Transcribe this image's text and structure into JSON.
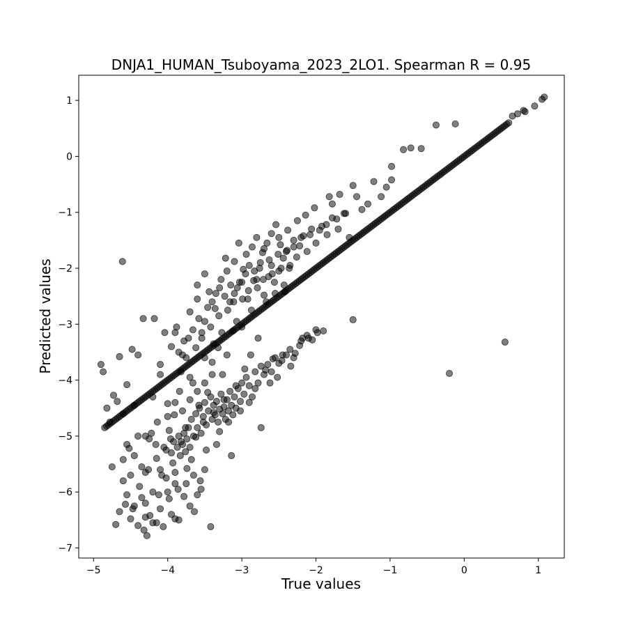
{
  "chart_data": {
    "type": "scatter",
    "title": "DNJA1_HUMAN_Tsuboyama_2023_2LO1. Spearman R = 0.95",
    "xlabel": "True values",
    "ylabel": "Predicted values",
    "xlim": [
      -5.2,
      1.35
    ],
    "ylim": [
      -7.18,
      1.45
    ],
    "xticks": [
      -5,
      -4,
      -3,
      -2,
      -1,
      0,
      1
    ],
    "yticks": [
      -7,
      -6,
      -5,
      -4,
      -3,
      -2,
      -1,
      0,
      1
    ],
    "xtick_labels": [
      "−5",
      "−4",
      "−3",
      "−2",
      "−1",
      "0",
      "1"
    ],
    "ytick_labels": [
      "−7",
      "−6",
      "−5",
      "−4",
      "−3",
      "−2",
      "−1",
      "0",
      "1"
    ],
    "grid": false,
    "marker_color": "#000000",
    "marker_alpha": 0.5,
    "diagonal_range": [
      -4.85,
      0.6
    ],
    "diagonal_step": 0.025,
    "points": [
      [
        -4.9,
        -3.72
      ],
      [
        -4.87,
        -3.85
      ],
      [
        -4.82,
        -4.5
      ],
      [
        -4.78,
        -4.75
      ],
      [
        -4.75,
        -5.55
      ],
      [
        -4.73,
        -4.27
      ],
      [
        -4.7,
        -6.58
      ],
      [
        -4.68,
        -4.38
      ],
      [
        -4.65,
        -3.58
      ],
      [
        -4.6,
        -5.42
      ],
      [
        -4.61,
        -1.88
      ],
      [
        -4.57,
        -6.22
      ],
      [
        -4.55,
        -4.08
      ],
      [
        -4.52,
        -5.22
      ],
      [
        -4.5,
        -6.48
      ],
      [
        -4.48,
        -3.45
      ],
      [
        -4.47,
        -6.3
      ],
      [
        -4.45,
        -5.35
      ],
      [
        -4.4,
        -3.55
      ],
      [
        -4.38,
        -5.9
      ],
      [
        -4.35,
        -6.1
      ],
      [
        -4.33,
        -2.9
      ],
      [
        -4.32,
        -6.68
      ],
      [
        -4.3,
        -5.0
      ],
      [
        -4.28,
        -6.78
      ],
      [
        -4.26,
        -5.6
      ],
      [
        -4.24,
        -6.42
      ],
      [
        -4.22,
        -4.95
      ],
      [
        -4.2,
        -6.55
      ],
      [
        -4.18,
        -2.9
      ],
      [
        -4.16,
        -5.15
      ],
      [
        -4.14,
        -4.75
      ],
      [
        -4.12,
        -6.05
      ],
      [
        -4.1,
        -3.72
      ],
      [
        -4.08,
        -5.7
      ],
      [
        -4.06,
        -6.62
      ],
      [
        -4.04,
        -3.15
      ],
      [
        -4.02,
        -5.25
      ],
      [
        -4.0,
        -4.42
      ],
      [
        -3.98,
        -6.12
      ],
      [
        -3.96,
        -5.05
      ],
      [
        -3.95,
        -3.4
      ],
      [
        -3.93,
        -5.48
      ],
      [
        -3.91,
        -4.62
      ],
      [
        -3.9,
        -6.48
      ],
      [
        -3.88,
        -3.05
      ],
      [
        -3.86,
        -5.95
      ],
      [
        -3.84,
        -4.2
      ],
      [
        -3.82,
        -5.1
      ],
      [
        -3.8,
        -3.55
      ],
      [
        -3.78,
        -6.08
      ],
      [
        -3.76,
        -4.85
      ],
      [
        -3.74,
        -5.58
      ],
      [
        -3.72,
        -3.25
      ],
      [
        -3.7,
        -2.78
      ],
      [
        -3.68,
        -5.42
      ],
      [
        -3.66,
        -4.05
      ],
      [
        -3.64,
        -6.35
      ],
      [
        -3.62,
        -5.02
      ],
      [
        -3.6,
        -2.55
      ],
      [
        -3.58,
        -4.45
      ],
      [
        -3.56,
        -5.8
      ],
      [
        -3.54,
        -3.15
      ],
      [
        -3.52,
        -4.75
      ],
      [
        -3.5,
        -2.95
      ],
      [
        -3.48,
        -5.25
      ],
      [
        -3.46,
        -4.22
      ],
      [
        -3.44,
        -2.42
      ],
      [
        -3.42,
        -6.62
      ],
      [
        -3.4,
        -3.68
      ],
      [
        -3.38,
        -4.58
      ],
      [
        -3.36,
        -2.72
      ],
      [
        -3.34,
        -5.15
      ],
      [
        -3.32,
        -3.42
      ],
      [
        -3.3,
        -4.92
      ],
      [
        -3.28,
        -2.2
      ],
      [
        -3.26,
        -3.9
      ],
      [
        -3.24,
        -4.35
      ],
      [
        -3.22,
        -1.82
      ],
      [
        -3.2,
        -3.55
      ],
      [
        -3.18,
        -4.75
      ],
      [
        -3.16,
        -2.6
      ],
      [
        -3.14,
        -5.35
      ],
      [
        -3.12,
        -3.12
      ],
      [
        -3.1,
        -1.88
      ],
      [
        -3.08,
        -4.1
      ],
      [
        -3.06,
        -2.35
      ],
      [
        -3.04,
        -1.55
      ],
      [
        -3.02,
        -4.55
      ],
      [
        -3.0,
        -3.05
      ],
      [
        -2.98,
        -2.02
      ],
      [
        -2.96,
        -3.8
      ],
      [
        -2.94,
        -1.75
      ],
      [
        -2.92,
        -2.55
      ],
      [
        -2.9,
        -4.4
      ],
      [
        -2.88,
        -3.55
      ],
      [
        -2.86,
        -1.62
      ],
      [
        -2.84,
        -2.22
      ],
      [
        -2.82,
        -4.15
      ],
      [
        -2.8,
        -1.45
      ],
      [
        -2.78,
        -3.25
      ],
      [
        -2.76,
        -2.0
      ],
      [
        -2.74,
        -4.85
      ],
      [
        -2.72,
        -1.72
      ],
      [
        -2.7,
        -2.48
      ],
      [
        -2.68,
        -3.82
      ],
      [
        -2.66,
        -1.55
      ],
      [
        -2.64,
        -2.15
      ],
      [
        -2.62,
        -4.05
      ],
      [
        -2.6,
        -1.38
      ],
      [
        -2.58,
        -3.62
      ],
      [
        -2.56,
        -2.25
      ],
      [
        -2.54,
        -1.22
      ],
      [
        -2.52,
        -3.95
      ],
      [
        -2.5,
        -2.05
      ],
      [
        -2.48,
        -1.58
      ],
      [
        -2.46,
        -3.65
      ],
      [
        -2.44,
        -1.82
      ],
      [
        -2.42,
        -2.42
      ],
      [
        -2.4,
        -3.55
      ],
      [
        -2.38,
        -1.32
      ],
      [
        -2.36,
        -2.0
      ],
      [
        -2.34,
        -3.75
      ],
      [
        -2.3,
        -1.62
      ],
      [
        -2.28,
        -3.52
      ],
      [
        -2.25,
        -1.15
      ],
      [
        -2.22,
        -3.38
      ],
      [
        -2.2,
        -1.45
      ],
      [
        -2.18,
        -3.25
      ],
      [
        -2.14,
        -1.05
      ],
      [
        -2.12,
        -3.2
      ],
      [
        -2.08,
        -1.4
      ],
      [
        -2.05,
        -3.28
      ],
      [
        -2.02,
        -0.92
      ],
      [
        -1.98,
        -3.15
      ],
      [
        -1.95,
        -1.32
      ],
      [
        -1.9,
        -3.12
      ],
      [
        -1.86,
        -1.22
      ],
      [
        -1.82,
        -0.72
      ],
      [
        -1.78,
        -0.85
      ],
      [
        -1.72,
        -1.12
      ],
      [
        -1.68,
        -0.68
      ],
      [
        -1.62,
        -1.02
      ],
      [
        -1.55,
        -1.45
      ],
      [
        -1.5,
        -0.52
      ],
      [
        -1.5,
        -2.92
      ],
      [
        -1.45,
        -0.72
      ],
      [
        -1.38,
        -0.95
      ],
      [
        -1.3,
        -0.85
      ],
      [
        -1.22,
        -0.45
      ],
      [
        -1.12,
        -0.72
      ],
      [
        -1.05,
        -0.55
      ],
      [
        -0.98,
        -0.42
      ],
      [
        -0.98,
        -0.18
      ],
      [
        -0.82,
        0.12
      ],
      [
        -0.72,
        0.15
      ],
      [
        -0.58,
        0.14
      ],
      [
        -0.38,
        0.56
      ],
      [
        -0.12,
        0.58
      ],
      [
        -0.2,
        -3.88
      ],
      [
        0.55,
        -3.32
      ],
      [
        0.65,
        0.72
      ],
      [
        0.82,
        0.8
      ],
      [
        0.95,
        0.9
      ],
      [
        1.05,
        1.02
      ],
      [
        1.08,
        1.06
      ],
      [
        0.72,
        0.76
      ],
      [
        0.8,
        0.82
      ],
      [
        -4.6,
        -4.6
      ],
      [
        -4.55,
        -5.15
      ],
      [
        -4.4,
        -5.0
      ],
      [
        -4.35,
        -5.55
      ],
      [
        -4.3,
        -5.65
      ],
      [
        -4.25,
        -5.05
      ],
      [
        -4.15,
        -5.4
      ],
      [
        -4.1,
        -5.6
      ],
      [
        -4.05,
        -5.2
      ],
      [
        -4.02,
        -5.75
      ],
      [
        -3.98,
        -4.9
      ],
      [
        -3.95,
        -5.3
      ],
      [
        -3.92,
        -5.1
      ],
      [
        -3.9,
        -5.65
      ],
      [
        -3.87,
        -5.2
      ],
      [
        -3.85,
        -5.0
      ],
      [
        -3.83,
        -5.35
      ],
      [
        -3.8,
        -5.15
      ],
      [
        -3.78,
        -4.95
      ],
      [
        -3.76,
        -5.28
      ],
      [
        -3.74,
        -5.05
      ],
      [
        -3.72,
        -4.85
      ],
      [
        -3.7,
        -5.2
      ],
      [
        -3.68,
        -4.7
      ],
      [
        -3.65,
        -5.0
      ],
      [
        -3.62,
        -4.6
      ],
      [
        -3.6,
        -4.85
      ],
      [
        -3.57,
        -4.5
      ],
      [
        -3.55,
        -4.95
      ],
      [
        -3.52,
        -4.65
      ],
      [
        -3.5,
        -4.4
      ],
      [
        -3.48,
        -4.8
      ],
      [
        -3.45,
        -4.55
      ],
      [
        -3.42,
        -4.3
      ],
      [
        -3.4,
        -4.7
      ],
      [
        -3.38,
        -4.45
      ],
      [
        -3.36,
        -4.62
      ],
      [
        -3.34,
        -4.38
      ],
      [
        -3.32,
        -4.75
      ],
      [
        -3.3,
        -4.52
      ],
      [
        -3.28,
        -4.25
      ],
      [
        -3.26,
        -4.6
      ],
      [
        -3.24,
        -4.48
      ],
      [
        -3.22,
        -4.7
      ],
      [
        -3.2,
        -4.35
      ],
      [
        -3.18,
        -4.55
      ],
      [
        -3.16,
        -4.2
      ],
      [
        -3.14,
        -4.45
      ],
      [
        -3.12,
        -4.62
      ],
      [
        -3.1,
        -4.3
      ],
      [
        -3.08,
        -4.5
      ],
      [
        -3.05,
        -4.15
      ],
      [
        -3.02,
        -4.38
      ],
      [
        -3.0,
        -4.05
      ],
      [
        -2.97,
        -4.25
      ],
      [
        -2.94,
        -3.95
      ],
      [
        -2.9,
        -4.1
      ],
      [
        -2.86,
        -4.3
      ],
      [
        -2.82,
        -3.85
      ],
      [
        -2.78,
        -4.05
      ],
      [
        -2.74,
        -3.75
      ],
      [
        -2.7,
        -3.9
      ],
      [
        -2.65,
        -3.72
      ],
      [
        -2.6,
        -3.85
      ],
      [
        -2.55,
        -3.6
      ],
      [
        -2.5,
        -3.7
      ],
      [
        -2.45,
        -3.55
      ],
      [
        -2.35,
        -3.45
      ],
      [
        -2.3,
        -3.6
      ],
      [
        -2.2,
        -3.3
      ],
      [
        -2.1,
        -3.25
      ],
      [
        -2.0,
        -3.1
      ],
      [
        -3.9,
        -3.15
      ],
      [
        -3.85,
        -3.5
      ],
      [
        -3.82,
        -3.85
      ],
      [
        -3.78,
        -3.3
      ],
      [
        -3.75,
        -3.6
      ],
      [
        -3.7,
        -3.95
      ],
      [
        -3.66,
        -3.1
      ],
      [
        -3.62,
        -3.42
      ],
      [
        -3.58,
        -2.9
      ],
      [
        -3.54,
        -3.25
      ],
      [
        -3.5,
        -3.6
      ],
      [
        -3.46,
        -2.7
      ],
      [
        -3.42,
        -3.05
      ],
      [
        -3.38,
        -3.35
      ],
      [
        -3.35,
        -2.45
      ],
      [
        -3.31,
        -2.85
      ],
      [
        -3.27,
        -3.15
      ],
      [
        -3.23,
        -2.5
      ],
      [
        -3.19,
        -2.75
      ],
      [
        -3.15,
        -2.3
      ],
      [
        -3.11,
        -2.6
      ],
      [
        -3.07,
        -2.95
      ],
      [
        -3.03,
        -2.25
      ],
      [
        -2.99,
        -2.55
      ],
      [
        -2.95,
        -2.1
      ],
      [
        -2.91,
        -2.4
      ],
      [
        -2.87,
        -2.75
      ],
      [
        -2.83,
        -2.05
      ],
      [
        -2.79,
        -2.35
      ],
      [
        -2.75,
        -1.9
      ],
      [
        -2.71,
        -2.2
      ],
      [
        -2.67,
        -2.6
      ],
      [
        -2.63,
        -1.85
      ],
      [
        -2.59,
        -2.1
      ],
      [
        -2.55,
        -2.45
      ],
      [
        -2.51,
        -1.75
      ],
      [
        -2.47,
        -2.0
      ],
      [
        -2.43,
        -2.3
      ],
      [
        -2.39,
        -1.68
      ],
      [
        -2.35,
        -1.95
      ],
      [
        -2.3,
        -1.5
      ],
      [
        -2.26,
        -1.8
      ],
      [
        -2.22,
        -1.6
      ],
      [
        -2.17,
        -1.42
      ],
      [
        -2.12,
        -1.7
      ],
      [
        -2.06,
        -1.3
      ],
      [
        -2.0,
        -1.55
      ],
      [
        -1.92,
        -1.25
      ],
      [
        -1.85,
        -1.4
      ],
      [
        -1.78,
        -1.1
      ],
      [
        -1.7,
        -1.3
      ],
      [
        -1.6,
        -1.02
      ],
      [
        -3.6,
        -2.3
      ],
      [
        -3.5,
        -2.1
      ],
      [
        -3.4,
        -2.6
      ],
      [
        -3.3,
        -2.35
      ],
      [
        -3.2,
        -2.05
      ],
      [
        -3.1,
        -2.45
      ],
      [
        -3.0,
        -2.25
      ],
      [
        -2.9,
        -1.95
      ],
      [
        -2.8,
        -2.2
      ],
      [
        -2.7,
        -1.65
      ],
      [
        -2.6,
        -1.95
      ],
      [
        -2.5,
        -1.45
      ],
      [
        -2.4,
        -1.7
      ],
      [
        -4.45,
        -4.45
      ],
      [
        -4.2,
        -4.3
      ],
      [
        -4.1,
        -3.9
      ],
      [
        -4.0,
        -4.65
      ],
      [
        -3.9,
        -4.4
      ],
      [
        -3.8,
        -4.55
      ],
      [
        -3.7,
        -4.35
      ],
      [
        -3.6,
        -4.2
      ],
      [
        -3.5,
        -4.05
      ],
      [
        -3.4,
        -3.9
      ],
      [
        -4.3,
        -6.2
      ],
      [
        -4.2,
        -6.0
      ],
      [
        -4.1,
        -6.3
      ],
      [
        -3.95,
        -6.4
      ],
      [
        -3.85,
        -6.5
      ],
      [
        -3.75,
        -5.85
      ],
      [
        -3.65,
        -5.7
      ],
      [
        -3.6,
        -6.05
      ],
      [
        -3.5,
        -5.6
      ],
      [
        -4.4,
        -6.6
      ],
      [
        -4.45,
        -6.25
      ],
      [
        -4.55,
        -6.05
      ],
      [
        -4.6,
        -5.8
      ],
      [
        -4.65,
        -6.35
      ],
      [
        -4.5,
        -5.7
      ],
      [
        -4.3,
        -6.45
      ],
      [
        -4.15,
        -6.55
      ],
      [
        -4.0,
        -6.0
      ],
      [
        -3.9,
        -5.85
      ],
      [
        -3.7,
        -6.25
      ],
      [
        -3.55,
        -5.95
      ]
    ]
  }
}
